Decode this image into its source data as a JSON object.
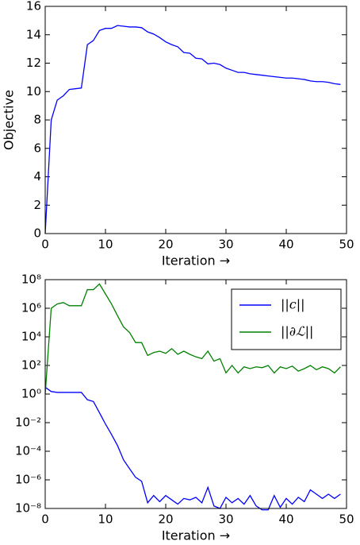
{
  "chart_data": [
    {
      "type": "line",
      "xlabel": "Iteration →",
      "ylabel": "Objective",
      "x": [
        0,
        1,
        2,
        3,
        4,
        5,
        6,
        7,
        8,
        9,
        10,
        11,
        12,
        13,
        14,
        15,
        16,
        17,
        18,
        19,
        20,
        21,
        22,
        23,
        24,
        25,
        26,
        27,
        28,
        29,
        30,
        31,
        32,
        33,
        34,
        35,
        36,
        37,
        38,
        39,
        40,
        41,
        42,
        43,
        44,
        45,
        46,
        47,
        48,
        49
      ],
      "series": [
        {
          "color": "#0000ff",
          "values": [
            0,
            8,
            9.4,
            9.7,
            10.15,
            10.2,
            10.25,
            13.3,
            13.6,
            14.3,
            14.45,
            14.45,
            14.65,
            14.6,
            14.55,
            14.55,
            14.5,
            14.2,
            14.05,
            13.8,
            13.5,
            13.3,
            13.15,
            12.75,
            12.7,
            12.35,
            12.3,
            11.95,
            12.0,
            11.9,
            11.65,
            11.5,
            11.35,
            11.35,
            11.25,
            11.2,
            11.15,
            11.1,
            11.05,
            11.0,
            10.95,
            10.95,
            10.9,
            10.85,
            10.75,
            10.7,
            10.7,
            10.65,
            10.55,
            10.5
          ]
        }
      ],
      "xlim": [
        0,
        50
      ],
      "xticks": [
        0,
        10,
        20,
        30,
        40,
        50
      ],
      "ylim": [
        0,
        16
      ],
      "yticks": [
        0,
        2,
        4,
        6,
        8,
        10,
        12,
        14,
        16
      ]
    },
    {
      "type": "line",
      "xlabel": "Iteration →",
      "yscale": "log",
      "legend": "upper right",
      "x": [
        0,
        1,
        2,
        3,
        4,
        5,
        6,
        7,
        8,
        9,
        10,
        11,
        12,
        13,
        14,
        15,
        16,
        17,
        18,
        19,
        20,
        21,
        22,
        23,
        24,
        25,
        26,
        27,
        28,
        29,
        30,
        31,
        32,
        33,
        34,
        35,
        36,
        37,
        38,
        39,
        40,
        41,
        42,
        43,
        44,
        45,
        46,
        47,
        48,
        49
      ],
      "series": [
        {
          "name": "||c||",
          "color": "#0000ff",
          "values": [
            3,
            1.5,
            1.3,
            1.3,
            1.3,
            1.3,
            1.3,
            0.4,
            0.3,
            0.05,
            0.008,
            0.0015,
            0.00025,
            2.5e-05,
            6e-06,
            1.5e-06,
            8e-07,
            2.5e-08,
            8e-08,
            3e-08,
            8e-08,
            4e-08,
            2e-08,
            5e-08,
            4e-08,
            6e-08,
            2.5e-08,
            3e-07,
            1.5e-08,
            1e-08,
            6e-08,
            2.5e-08,
            5e-08,
            2e-08,
            8e-08,
            1.5e-08,
            8e-09,
            8e-09,
            8e-08,
            1.2e-08,
            5e-08,
            2e-08,
            6e-08,
            3e-08,
            2e-07,
            1e-07,
            5e-08,
            1e-07,
            5e-08,
            1e-07
          ]
        },
        {
          "name": "||∂ℒ||",
          "color": "#008000",
          "values": [
            1,
            1000000,
            2000000,
            2500000,
            1500000,
            1500000,
            1500000,
            20000000,
            20000000,
            50000000,
            10000000,
            2000000,
            300000,
            50000,
            20000,
            4000,
            4000,
            500,
            800,
            1000,
            700,
            1500,
            600,
            1000,
            600,
            400,
            300,
            1000,
            200,
            300,
            30,
            100,
            30,
            80,
            60,
            80,
            70,
            100,
            30,
            80,
            60,
            90,
            40,
            60,
            100,
            50,
            80,
            60,
            30,
            80
          ]
        }
      ],
      "xlim": [
        0,
        50
      ],
      "xticks": [
        0,
        10,
        20,
        30,
        40,
        50
      ],
      "ylim": [
        1e-08,
        100000000.0
      ],
      "yticks": [
        {
          "value": 1e-08,
          "label": "10⁻⁸"
        },
        {
          "value": 1e-06,
          "label": "10⁻⁶"
        },
        {
          "value": 0.0001,
          "label": "10⁻⁴"
        },
        {
          "value": 0.01,
          "label": "10⁻²"
        },
        {
          "value": 1,
          "label": "10⁰"
        },
        {
          "value": 100,
          "label": "10²"
        },
        {
          "value": 10000,
          "label": "10⁴"
        },
        {
          "value": 1000000,
          "label": "10⁶"
        },
        {
          "value": 100000000.0,
          "label": "10⁸"
        }
      ]
    }
  ]
}
